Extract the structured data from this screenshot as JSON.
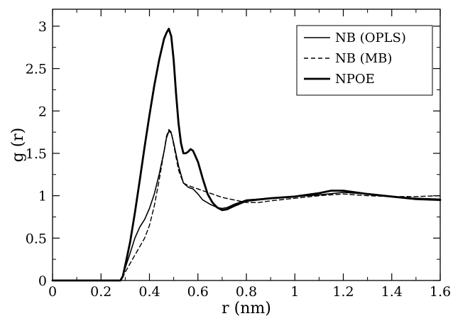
{
  "chart_data": {
    "type": "line",
    "xlabel": "r (nm)",
    "ylabel": "g (r)",
    "xlim": [
      0,
      1.6
    ],
    "ylim": [
      0,
      3.2
    ],
    "x_ticks": [
      "0",
      "0.2",
      "0.4",
      "0.6",
      "0.8",
      "1",
      "1.2",
      "1.4",
      "1.6"
    ],
    "y_ticks": [
      "0",
      "0.5",
      "1",
      "1.5",
      "2",
      "2.5",
      "3"
    ],
    "grid": false,
    "legend_position": "top-right",
    "series": [
      {
        "name": "NB (OPLS)",
        "style": "solid",
        "width": 1.6,
        "color": "#000000",
        "points": [
          [
            0,
            0
          ],
          [
            0.28,
            0
          ],
          [
            0.29,
            0.05
          ],
          [
            0.3,
            0.15
          ],
          [
            0.32,
            0.32
          ],
          [
            0.34,
            0.5
          ],
          [
            0.36,
            0.63
          ],
          [
            0.38,
            0.72
          ],
          [
            0.4,
            0.85
          ],
          [
            0.42,
            1.02
          ],
          [
            0.44,
            1.25
          ],
          [
            0.46,
            1.52
          ],
          [
            0.47,
            1.68
          ],
          [
            0.48,
            1.76
          ],
          [
            0.49,
            1.74
          ],
          [
            0.5,
            1.62
          ],
          [
            0.52,
            1.35
          ],
          [
            0.54,
            1.15
          ],
          [
            0.56,
            1.1
          ],
          [
            0.58,
            1.08
          ],
          [
            0.6,
            1.02
          ],
          [
            0.62,
            0.95
          ],
          [
            0.65,
            0.9
          ],
          [
            0.68,
            0.86
          ],
          [
            0.7,
            0.85
          ],
          [
            0.72,
            0.86
          ],
          [
            0.75,
            0.9
          ],
          [
            0.8,
            0.95
          ],
          [
            0.9,
            0.97
          ],
          [
            1.0,
            0.99
          ],
          [
            1.1,
            1.01
          ],
          [
            1.2,
            1.04
          ],
          [
            1.3,
            1.02
          ],
          [
            1.4,
            0.99
          ],
          [
            1.5,
            0.97
          ],
          [
            1.6,
            0.96
          ]
        ]
      },
      {
        "name": "NB (MB)",
        "style": "dashed",
        "width": 1.4,
        "color": "#000000",
        "points": [
          [
            0,
            0
          ],
          [
            0.28,
            0
          ],
          [
            0.29,
            0.04
          ],
          [
            0.3,
            0.1
          ],
          [
            0.32,
            0.2
          ],
          [
            0.34,
            0.3
          ],
          [
            0.36,
            0.4
          ],
          [
            0.38,
            0.5
          ],
          [
            0.4,
            0.65
          ],
          [
            0.42,
            0.88
          ],
          [
            0.44,
            1.18
          ],
          [
            0.46,
            1.52
          ],
          [
            0.47,
            1.7
          ],
          [
            0.48,
            1.78
          ],
          [
            0.49,
            1.75
          ],
          [
            0.5,
            1.6
          ],
          [
            0.52,
            1.3
          ],
          [
            0.54,
            1.15
          ],
          [
            0.56,
            1.12
          ],
          [
            0.58,
            1.1
          ],
          [
            0.62,
            1.06
          ],
          [
            0.66,
            1.02
          ],
          [
            0.7,
            0.98
          ],
          [
            0.75,
            0.95
          ],
          [
            0.8,
            0.92
          ],
          [
            0.85,
            0.92
          ],
          [
            0.9,
            0.94
          ],
          [
            1.0,
            0.97
          ],
          [
            1.1,
            1.0
          ],
          [
            1.2,
            1.02
          ],
          [
            1.3,
            1.0
          ],
          [
            1.4,
            0.99
          ],
          [
            1.5,
            0.99
          ],
          [
            1.6,
            1.0
          ]
        ]
      },
      {
        "name": "NPOE",
        "style": "solid",
        "width": 2.8,
        "color": "#000000",
        "points": [
          [
            0,
            0
          ],
          [
            0.28,
            0
          ],
          [
            0.29,
            0.05
          ],
          [
            0.3,
            0.18
          ],
          [
            0.32,
            0.45
          ],
          [
            0.34,
            0.8
          ],
          [
            0.36,
            1.18
          ],
          [
            0.38,
            1.58
          ],
          [
            0.4,
            1.95
          ],
          [
            0.42,
            2.3
          ],
          [
            0.44,
            2.6
          ],
          [
            0.46,
            2.85
          ],
          [
            0.47,
            2.92
          ],
          [
            0.48,
            2.97
          ],
          [
            0.49,
            2.88
          ],
          [
            0.5,
            2.6
          ],
          [
            0.51,
            2.2
          ],
          [
            0.52,
            1.85
          ],
          [
            0.53,
            1.62
          ],
          [
            0.54,
            1.5
          ],
          [
            0.55,
            1.5
          ],
          [
            0.56,
            1.52
          ],
          [
            0.57,
            1.55
          ],
          [
            0.58,
            1.53
          ],
          [
            0.6,
            1.4
          ],
          [
            0.62,
            1.2
          ],
          [
            0.64,
            1.02
          ],
          [
            0.66,
            0.92
          ],
          [
            0.68,
            0.86
          ],
          [
            0.7,
            0.83
          ],
          [
            0.72,
            0.84
          ],
          [
            0.75,
            0.88
          ],
          [
            0.8,
            0.94
          ],
          [
            0.9,
            0.97
          ],
          [
            1.0,
            0.99
          ],
          [
            1.1,
            1.03
          ],
          [
            1.15,
            1.06
          ],
          [
            1.2,
            1.06
          ],
          [
            1.3,
            1.02
          ],
          [
            1.4,
            0.99
          ],
          [
            1.5,
            0.96
          ],
          [
            1.6,
            0.95
          ]
        ]
      }
    ]
  }
}
